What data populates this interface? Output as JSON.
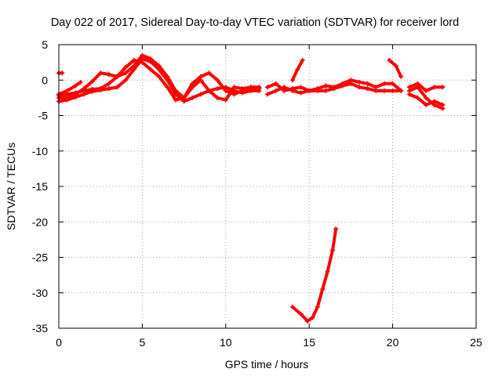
{
  "chart_data": {
    "type": "scatter",
    "title": "Day 022 of 2017, Sidereal Day-to-day VTEC variation (SDTVAR) for receiver lord",
    "xlabel": "GPS time / hours",
    "ylabel": "SDTVAR / TECUs",
    "xlim": [
      0,
      25
    ],
    "ylim": [
      -35,
      5
    ],
    "xticks": [
      0,
      5,
      10,
      15,
      20,
      25
    ],
    "yticks": [
      5,
      0,
      -5,
      -10,
      -15,
      -20,
      -25,
      -30,
      -35
    ],
    "xtick_labels": [
      "0",
      "5",
      "10",
      "15",
      "20",
      "25"
    ],
    "ytick_labels": [
      "5",
      "0",
      "-5",
      "-10",
      "-15",
      "-20",
      "-25",
      "-30",
      "-35"
    ],
    "grid": true,
    "legend": "none",
    "marker_color": "#ff0000",
    "series": [
      {
        "values": [
          [
            0,
            -2.0
          ],
          [
            0.5,
            -1.5
          ],
          [
            1.0,
            -0.8
          ],
          [
            1.3,
            -0.3
          ]
        ]
      },
      {
        "values": [
          [
            0,
            -3.0
          ],
          [
            0.5,
            -2.8
          ],
          [
            1.0,
            -2.4
          ],
          [
            1.5,
            -2.0
          ],
          [
            2.0,
            -1.6
          ],
          [
            2.5,
            -1.4
          ],
          [
            3.0,
            -1.2
          ],
          [
            3.5,
            -1.0
          ],
          [
            4.0,
            0.0
          ],
          [
            4.5,
            1.5
          ],
          [
            5.0,
            3.0
          ],
          [
            5.5,
            2.6
          ],
          [
            6.0,
            1.5
          ],
          [
            6.5,
            0.0
          ],
          [
            7.0,
            -2.0
          ],
          [
            7.5,
            -3.0
          ],
          [
            8.0,
            -2.5
          ],
          [
            8.5,
            -2.0
          ],
          [
            9.0,
            -1.5
          ],
          [
            9.5,
            -1.2
          ],
          [
            10.0,
            -1.0
          ],
          [
            10.5,
            -1.5
          ],
          [
            11.0,
            -1.8
          ],
          [
            11.5,
            -1.5
          ],
          [
            12.0,
            -1.5
          ]
        ]
      },
      {
        "values": [
          [
            0,
            -2.5
          ],
          [
            0.5,
            -2.5
          ],
          [
            1.0,
            -2.0
          ],
          [
            1.5,
            -1.2
          ],
          [
            2.0,
            -0.2
          ],
          [
            2.5,
            1.0
          ],
          [
            3.0,
            0.8
          ],
          [
            3.5,
            0.5
          ],
          [
            4.0,
            1.0
          ],
          [
            4.5,
            2.0
          ],
          [
            5.0,
            3.5
          ],
          [
            5.5,
            3.0
          ],
          [
            6.0,
            2.0
          ],
          [
            6.5,
            0.5
          ],
          [
            7.0,
            -1.5
          ],
          [
            7.5,
            -2.5
          ],
          [
            8.0,
            -0.5
          ],
          [
            8.5,
            0.5
          ],
          [
            9.0,
            1.0
          ],
          [
            9.5,
            0.0
          ],
          [
            10.0,
            -1.5
          ],
          [
            10.5,
            -2.0
          ],
          [
            11.0,
            -1.5
          ],
          [
            11.5,
            -1.3
          ],
          [
            12.0,
            -1.2
          ]
        ]
      },
      {
        "values": [
          [
            0,
            -2.2
          ],
          [
            0.5,
            -2.0
          ],
          [
            1.0,
            -1.8
          ],
          [
            1.5,
            -1.5
          ],
          [
            2.0,
            -1.3
          ],
          [
            2.5,
            -1.2
          ],
          [
            3.0,
            -0.5
          ],
          [
            3.5,
            0.5
          ],
          [
            4.0,
            1.8
          ],
          [
            4.5,
            2.8
          ],
          [
            5.0,
            2.5
          ],
          [
            5.5,
            1.5
          ],
          [
            6.0,
            0.5
          ],
          [
            6.5,
            -1.0
          ],
          [
            7.0,
            -2.8
          ],
          [
            7.5,
            -2.5
          ],
          [
            8.0,
            -1.0
          ],
          [
            8.5,
            0.0
          ],
          [
            9.0,
            -1.5
          ],
          [
            9.5,
            -2.5
          ],
          [
            10.0,
            -2.8
          ],
          [
            10.5,
            -1.0
          ],
          [
            11.0,
            -1.2
          ],
          [
            11.5,
            -1.0
          ],
          [
            12.0,
            -1.0
          ]
        ]
      },
      {
        "values": [
          [
            12.5,
            -1.0
          ],
          [
            13.0,
            -0.5
          ],
          [
            13.5,
            -1.5
          ],
          [
            14.0,
            -1.2
          ],
          [
            14.5,
            -1.0
          ],
          [
            15.0,
            -1.5
          ],
          [
            15.5,
            -1.2
          ],
          [
            16.0,
            -0.8
          ],
          [
            16.5,
            -1.0
          ],
          [
            17.0,
            -0.5
          ],
          [
            17.5,
            0.0
          ],
          [
            18.0,
            -0.3
          ],
          [
            18.5,
            -0.5
          ],
          [
            19.0,
            -1.0
          ],
          [
            19.5,
            -0.5
          ],
          [
            20.0,
            -0.5
          ],
          [
            20.5,
            -1.5
          ]
        ]
      },
      {
        "values": [
          [
            12.5,
            -2.0
          ],
          [
            13.0,
            -1.5
          ],
          [
            13.5,
            -1.0
          ],
          [
            14.0,
            -1.5
          ],
          [
            14.5,
            -1.8
          ],
          [
            15.0,
            -1.5
          ],
          [
            15.5,
            -1.5
          ],
          [
            16.0,
            -1.5
          ],
          [
            16.5,
            -1.2
          ],
          [
            17.0,
            -0.8
          ],
          [
            17.5,
            -0.5
          ],
          [
            18.0,
            -1.0
          ],
          [
            18.5,
            -1.2
          ],
          [
            19.0,
            -1.5
          ],
          [
            19.5,
            -1.5
          ],
          [
            20.0,
            -1.5
          ],
          [
            20.5,
            -1.5
          ]
        ]
      },
      {
        "values": [
          [
            14.0,
            0.0
          ],
          [
            14.3,
            1.5
          ],
          [
            14.6,
            2.8
          ]
        ]
      },
      {
        "values": [
          [
            19.8,
            2.8
          ],
          [
            20.2,
            2.0
          ],
          [
            20.5,
            0.5
          ]
        ]
      },
      {
        "values": [
          [
            21.0,
            -1.5
          ],
          [
            21.5,
            -1.0
          ],
          [
            22.0,
            -2.5
          ],
          [
            22.5,
            -3.5
          ],
          [
            23.0,
            -4.0
          ]
        ]
      },
      {
        "values": [
          [
            21.0,
            -2.0
          ],
          [
            21.5,
            -2.5
          ],
          [
            22.0,
            -3.5
          ],
          [
            22.5,
            -3.0
          ],
          [
            23.0,
            -3.5
          ]
        ]
      },
      {
        "values": [
          [
            21.0,
            -1.0
          ],
          [
            21.5,
            -0.5
          ],
          [
            22.0,
            -1.5
          ],
          [
            22.5,
            -1.0
          ],
          [
            23.0,
            -1.0
          ]
        ]
      },
      {
        "values": [
          [
            0,
            1.0
          ],
          [
            0.2,
            1.0
          ]
        ]
      },
      {
        "values": [
          [
            14.0,
            -32.0
          ],
          [
            14.5,
            -33.0
          ],
          [
            14.9,
            -34.0
          ],
          [
            15.2,
            -33.5
          ],
          [
            15.5,
            -32.0
          ],
          [
            15.8,
            -29.5
          ],
          [
            16.1,
            -27.0
          ],
          [
            16.4,
            -24.0
          ],
          [
            16.6,
            -21.0
          ]
        ]
      }
    ]
  }
}
